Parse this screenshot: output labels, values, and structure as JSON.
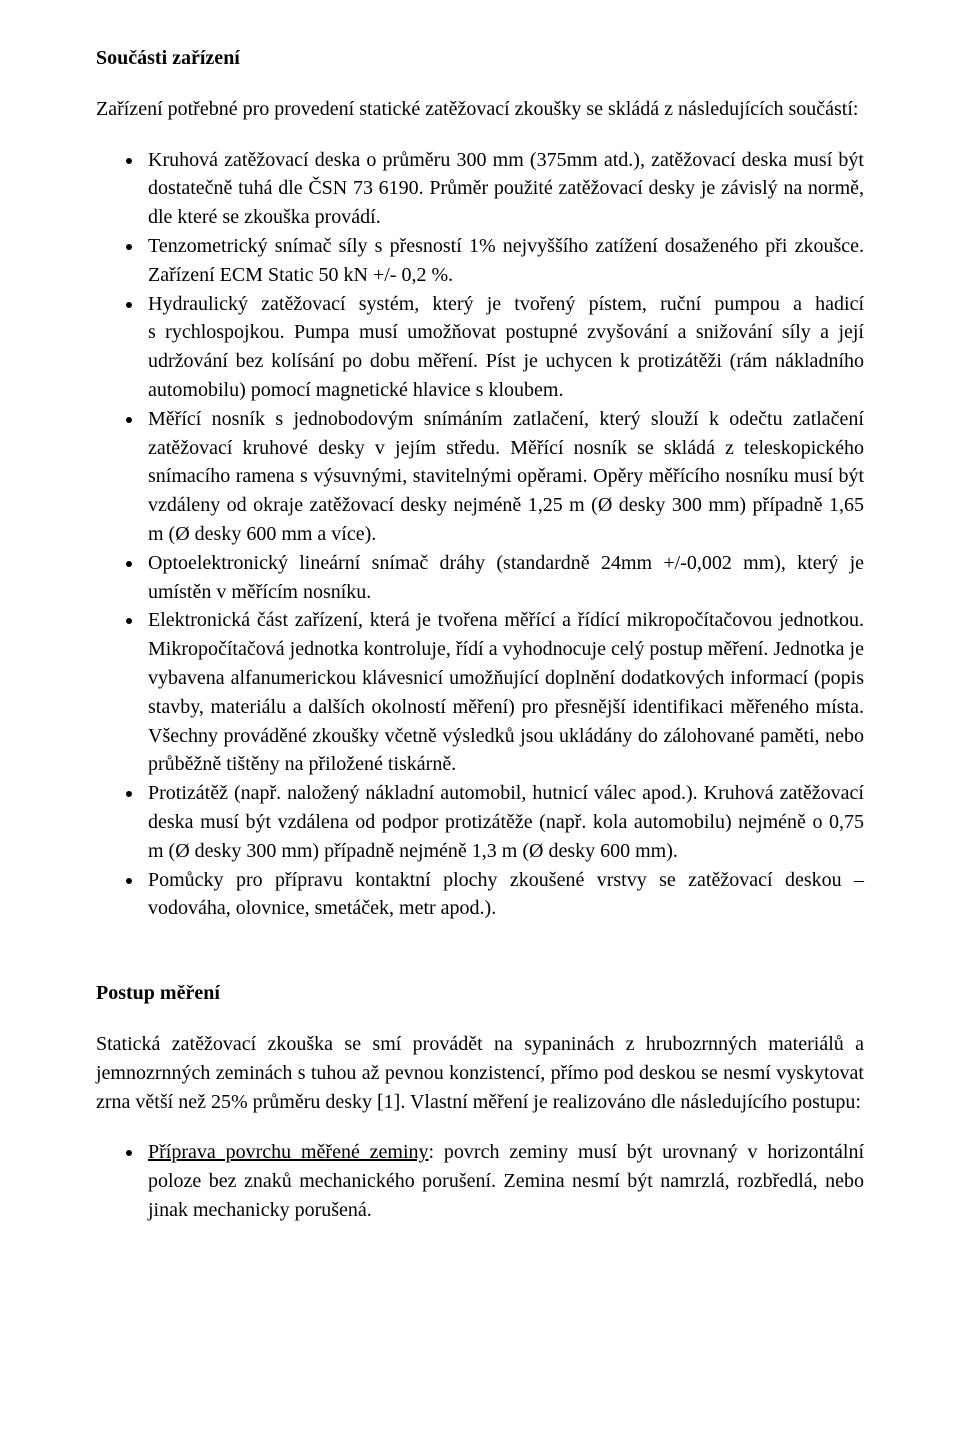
{
  "section1": {
    "title": "Součásti zařízení",
    "intro": "Zařízení potřebné pro provedení statické zatěžovací zkoušky se skládá z následujících součástí:",
    "bullets": [
      "Kruhová zatěžovací deska o průměru 300 mm (375mm atd.), zatěžovací deska musí být dostatečně tuhá dle ČSN 73 6190. Průměr použité zatěžovací desky je závislý na normě, dle které se zkouška provádí.",
      "Tenzometrický snímač síly s přesností 1% nejvyššího zatížení dosaženého při zkoušce. Zařízení ECM Static 50 kN +/- 0,2 %.",
      "Hydraulický zatěžovací systém, který je tvořený pístem, ruční pumpou a hadicí s rychlospojkou. Pumpa musí umožňovat postupné zvyšování a snižování síly a její udržování bez kolísání po dobu měření. Píst je uchycen k protizátěži (rám nákladního automobilu) pomocí magnetické hlavice s kloubem.",
      "Měřící nosník s jednobodovým snímáním zatlačení, který slouží k odečtu zatlačení zatěžovací kruhové desky v jejím středu. Měřící nosník se skládá z teleskopického snímacího ramena s výsuvnými, stavitelnými opěrami. Opěry měřícího nosníku musí být vzdáleny od okraje zatěžovací desky nejméně 1,25 m (Ø desky 300 mm) případně 1,65 m (Ø desky 600 mm a více).",
      "Optoelektronický lineární snímač dráhy (standardně 24mm +/-0,002 mm), který je umístěn v měřícím nosníku.",
      "Elektronická část zařízení, která je tvořena měřící a řídící mikropočítačovou jednotkou. Mikropočítačová jednotka kontroluje, řídí a vyhodnocuje celý postup měření. Jednotka je vybavena alfanumerickou klávesnicí umožňující doplnění dodatkových informací (popis stavby, materiálu a dalších okolností měření) pro přesnější identifikaci měřeného místa. Všechny prováděné zkoušky včetně výsledků jsou ukládány do zálohované paměti, nebo průběžně tištěny na přiložené tiskárně.",
      "Protizátěž (např. naložený nákladní automobil, hutnicí válec apod.). Kruhová zatěžovací deska musí být vzdálena od podpor protizátěže (např. kola automobilu) nejméně o 0,75 m (Ø desky 300 mm) případně nejméně 1,3 m (Ø desky 600 mm).",
      "Pomůcky pro přípravu kontaktní plochy zkoušené vrstvy se zatěžovací deskou – vodováha, olovnice, smetáček, metr apod.)."
    ]
  },
  "section2": {
    "title": "Postup měření",
    "para": "Statická zatěžovací zkouška se smí provádět na sypaninách z hrubozrnných materiálů a jemnozrnných zeminách s tuhou až pevnou konzistencí, přímo pod deskou se nesmí vyskytovat zrna větší než 25% průměru desky [1]. Vlastní měření je realizováno dle následujícího postupu:",
    "sub_lead_underline": "Příprava povrchu měřené zeminy",
    "sub_rest": ": povrch zeminy musí být urovnaný v horizontální poloze bez znaků mechanického porušení. Zemina nesmí být namrzlá, rozbředlá, nebo jinak mechanicky porušená."
  }
}
